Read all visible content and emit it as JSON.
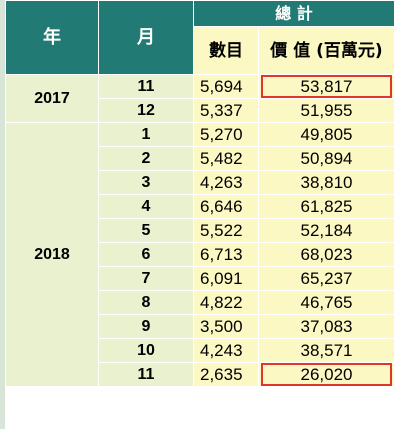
{
  "header": {
    "year": "年",
    "month": "月",
    "total": "總 計",
    "count": "數目",
    "value": "價 值 (百萬元)"
  },
  "years": [
    {
      "year": "2017",
      "rows": [
        {
          "month": "11",
          "count": "5,694",
          "value": "53,817",
          "highlight": true
        },
        {
          "month": "12",
          "count": "5,337",
          "value": "51,955",
          "highlight": false
        }
      ]
    },
    {
      "year": "2018",
      "rows": [
        {
          "month": "1",
          "count": "5,270",
          "value": "49,805",
          "highlight": false
        },
        {
          "month": "2",
          "count": "5,482",
          "value": "50,894",
          "highlight": false
        },
        {
          "month": "3",
          "count": "4,263",
          "value": "38,810",
          "highlight": false
        },
        {
          "month": "4",
          "count": "6,646",
          "value": "61,825",
          "highlight": false
        },
        {
          "month": "5",
          "count": "5,522",
          "value": "52,184",
          "highlight": false
        },
        {
          "month": "6",
          "count": "6,713",
          "value": "68,023",
          "highlight": false
        },
        {
          "month": "7",
          "count": "6,091",
          "value": "65,237",
          "highlight": false
        },
        {
          "month": "8",
          "count": "4,822",
          "value": "46,765",
          "highlight": false
        },
        {
          "month": "9",
          "count": "3,500",
          "value": "37,083",
          "highlight": false
        },
        {
          "month": "10",
          "count": "4,243",
          "value": "38,571",
          "highlight": false
        },
        {
          "month": "11",
          "count": "2,635",
          "value": "26,020",
          "highlight": true
        }
      ]
    }
  ],
  "colors": {
    "header_bg": "#217a74",
    "light_yellow": "#fbf8c4",
    "light_green": "#e9f1cf",
    "highlight_border": "#e0352b"
  }
}
